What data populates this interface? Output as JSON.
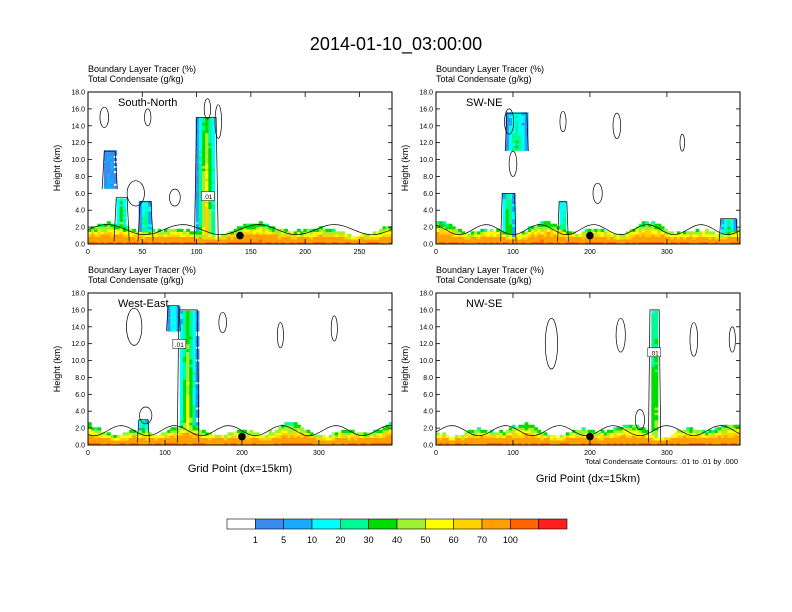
{
  "title": "2014-01-10_03:00:00",
  "footnote": "Total Condensate Contours: .01 to .01 by .000",
  "xlabel": "Grid Point (dx=15km)",
  "colors": {
    "background": "#ffffff",
    "axis": "#000000",
    "contour": "#000000"
  },
  "colorbar": {
    "colors": [
      "#ffffff",
      "#3c8cf0",
      "#19aaff",
      "#00ffff",
      "#00fa96",
      "#00dc00",
      "#a0f032",
      "#ffff00",
      "#ffd200",
      "#ffa000",
      "#ff6400",
      "#ff1e1e"
    ],
    "labels": [
      "1",
      "5",
      "10",
      "20",
      "30",
      "40",
      "50",
      "60",
      "70",
      "100"
    ]
  },
  "chart_data": [
    {
      "type": "heatmap",
      "panel": "South-North",
      "title_line1": "Boundary Layer Tracer   (%)",
      "title_line2": "Total Condensate   (g/kg)",
      "xlabel": "",
      "ylabel": "Height (km)",
      "xlim": [
        0,
        280
      ],
      "ylim": [
        0,
        18
      ],
      "xticks": [
        0,
        50,
        100,
        150,
        200,
        250
      ],
      "yticks": [
        "0.0",
        "2.0",
        "4.0",
        "6.0",
        "8.0",
        "10.0",
        "12.0",
        "14.0",
        "16.0",
        "18.0"
      ],
      "contour_label": ".01",
      "contour_label_pos": [
        110,
        5.5
      ],
      "marker": [
        140,
        1.0
      ],
      "plumes": [
        {
          "x0": 100,
          "x1": 118,
          "top": 15.0,
          "peak": 70
        },
        {
          "x0": 26,
          "x1": 36,
          "top": 5.5,
          "peak": 50
        },
        {
          "x0": 48,
          "x1": 58,
          "top": 5.0,
          "peak": 40
        },
        {
          "x0": 15,
          "x1": 25,
          "top": 11.0,
          "peak": 5,
          "detached_bottom": 6.5
        }
      ],
      "clouds": [
        [
          15,
          15.0,
          4,
          1.2
        ],
        [
          55,
          15.0,
          3,
          1.0
        ],
        [
          120,
          14.5,
          3,
          2.0
        ],
        [
          110,
          16.0,
          3,
          1.2
        ],
        [
          44,
          6.0,
          8,
          1.5
        ],
        [
          80,
          5.5,
          5,
          1.0
        ]
      ]
    },
    {
      "type": "heatmap",
      "panel": "SW-NE",
      "title_line1": "Boundary Layer Tracer   (%)",
      "title_line2": "Total Condensate   (g/kg)",
      "xlabel": "",
      "ylabel": "Height (km)",
      "xlim": [
        0,
        395
      ],
      "ylim": [
        0,
        18
      ],
      "xticks": [
        0,
        100,
        200,
        300
      ],
      "yticks": [
        "0.0",
        "2.0",
        "4.0",
        "6.0",
        "8.0",
        "10.0",
        "12.0",
        "14.0",
        "16.0",
        "18.0"
      ],
      "contour_label": "",
      "contour_label_pos": [
        0,
        0
      ],
      "marker": [
        200,
        1.0
      ],
      "plumes": [
        {
          "x0": 86,
          "x1": 102,
          "top": 6.0,
          "peak": 50
        },
        {
          "x0": 160,
          "x1": 170,
          "top": 5.0,
          "peak": 40
        },
        {
          "x0": 370,
          "x1": 390,
          "top": 3.0,
          "peak": 40
        },
        {
          "x0": 92,
          "x1": 118,
          "top": 15.5,
          "peak": 30,
          "detached_bottom": 11.0
        }
      ],
      "clouds": [
        [
          95,
          14.5,
          6,
          1.5
        ],
        [
          100,
          9.5,
          5,
          1.5
        ],
        [
          165,
          14.5,
          4,
          1.2
        ],
        [
          235,
          14.0,
          5,
          1.5
        ],
        [
          210,
          6.0,
          6,
          1.2
        ],
        [
          320,
          12.0,
          3,
          1.0
        ]
      ]
    },
    {
      "type": "heatmap",
      "panel": "West-East",
      "title_line1": "Boundary Layer Tracer   (%)",
      "title_line2": "Total Condensate   (g/kg)",
      "xlabel": "Grid Point (dx=15km)",
      "ylabel": "Height (km)",
      "xlim": [
        0,
        395
      ],
      "ylim": [
        0,
        18
      ],
      "xticks": [
        0,
        100,
        200,
        300
      ],
      "yticks": [
        "0.0",
        "2.0",
        "4.0",
        "6.0",
        "8.0",
        "10.0",
        "12.0",
        "14.0",
        "16.0",
        "18.0"
      ],
      "contour_label": ".01",
      "contour_label_pos": [
        118,
        11.8
      ],
      "marker": [
        200,
        1.0
      ],
      "plumes": [
        {
          "x0": 118,
          "x1": 142,
          "top": 16.0,
          "peak": 60
        },
        {
          "x0": 66,
          "x1": 78,
          "top": 3.0,
          "peak": 40
        },
        {
          "x0": 104,
          "x1": 118,
          "top": 16.5,
          "peak": 20,
          "detached_bottom": 13.5
        }
      ],
      "clouds": [
        [
          60,
          14.0,
          10,
          2.2
        ],
        [
          175,
          14.5,
          5,
          1.2
        ],
        [
          250,
          13.0,
          4,
          1.5
        ],
        [
          320,
          13.8,
          4,
          1.5
        ],
        [
          75,
          3.5,
          8,
          1.0
        ]
      ]
    },
    {
      "type": "heatmap",
      "panel": "NW-SE",
      "title_line1": "Boundary Layer Tracer   (%)",
      "title_line2": "Total Condensate   (g/kg)",
      "xlabel": "Grid Point (dx=15km)",
      "ylabel": "Height (km)",
      "xlim": [
        0,
        395
      ],
      "ylim": [
        0,
        18
      ],
      "xticks": [
        0,
        100,
        200,
        300
      ],
      "yticks": [
        "0.0",
        "2.0",
        "4.0",
        "6.0",
        "8.0",
        "10.0",
        "12.0",
        "14.0",
        "16.0",
        "18.0"
      ],
      "contour_label": ".01",
      "contour_label_pos": [
        283,
        10.8
      ],
      "marker": [
        200,
        1.0
      ],
      "plumes": [
        {
          "x0": 278,
          "x1": 290,
          "top": 16.0,
          "peak": 60
        }
      ],
      "clouds": [
        [
          150,
          12.0,
          8,
          3.0
        ],
        [
          240,
          13.0,
          6,
          2.0
        ],
        [
          335,
          12.5,
          5,
          2.0
        ],
        [
          385,
          12.5,
          4,
          1.5
        ],
        [
          265,
          3.0,
          6,
          1.2
        ]
      ]
    }
  ]
}
